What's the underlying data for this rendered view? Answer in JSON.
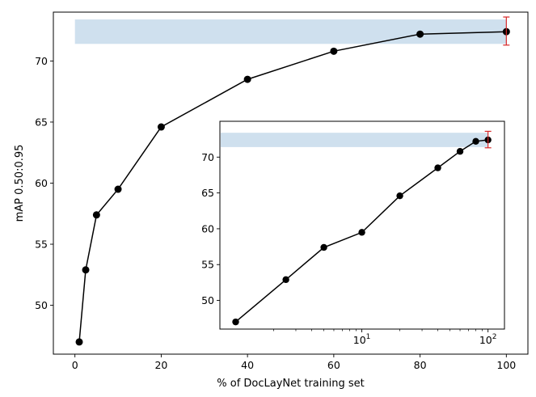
{
  "chart_data": [
    {
      "type": "line",
      "xlabel": "% of DocLayNet training set",
      "ylabel": "mAP 0.50:0.95",
      "xlim": [
        -5,
        105
      ],
      "ylim": [
        46.0,
        74.0
      ],
      "xticks": [
        0,
        20,
        40,
        60,
        80,
        100
      ],
      "yticks": [
        50,
        55,
        60,
        65,
        70
      ],
      "x": [
        1,
        2.5,
        5,
        10,
        20,
        40,
        60,
        80,
        100
      ],
      "y": [
        47.0,
        52.9,
        57.4,
        59.5,
        64.6,
        68.5,
        70.8,
        72.2,
        72.4
      ],
      "band": {
        "y_low": 71.4,
        "y_high": 73.4,
        "color": "#cfe0ee"
      },
      "error_bar": {
        "x": 100,
        "y": 72.4,
        "y_low": 71.3,
        "y_high": 73.6,
        "color": "#d62728"
      },
      "line_color": "#000000",
      "grid": false
    },
    {
      "type": "line",
      "xscale": "log",
      "xlim": [
        0.75,
        135
      ],
      "ylim": [
        46.0,
        75.0
      ],
      "xticks": [
        {
          "value": 10,
          "base": "10",
          "exp": "1"
        },
        {
          "value": 100,
          "base": "10",
          "exp": "2"
        }
      ],
      "yticks": [
        50,
        55,
        60,
        65,
        70
      ],
      "x": [
        1,
        2.5,
        5,
        10,
        20,
        40,
        60,
        80,
        100
      ],
      "y": [
        47.0,
        52.9,
        57.4,
        59.5,
        64.6,
        68.5,
        70.8,
        72.2,
        72.4
      ],
      "band": {
        "y_low": 71.4,
        "y_high": 73.4,
        "color": "#cfe0ee"
      },
      "error_bar": {
        "x": 100,
        "y": 72.4,
        "y_low": 71.3,
        "y_high": 73.6,
        "color": "#d62728"
      },
      "line_color": "#000000",
      "grid": false
    }
  ]
}
